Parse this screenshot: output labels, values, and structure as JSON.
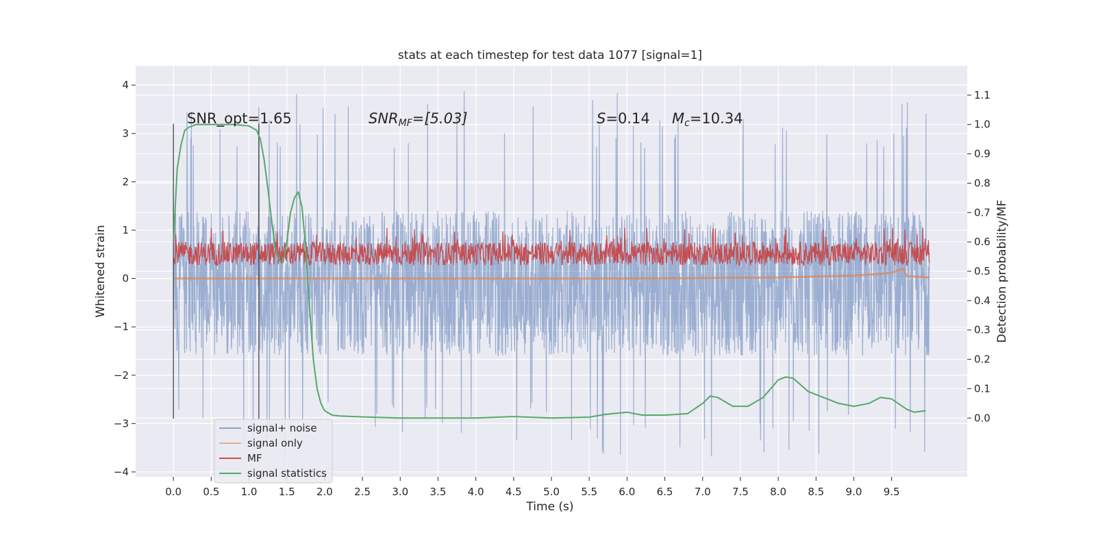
{
  "chart_data": {
    "type": "line",
    "title": "stats at each timestep for test data 1077 [signal=1]",
    "xlabel": "Time (s)",
    "ylabel_left": "Whitened strain",
    "ylabel_right": "Detection probability/MF",
    "xlim": [
      -0.5,
      10.5
    ],
    "ylim_left": [
      -4.1,
      4.4
    ],
    "ylim_right": [
      -0.2,
      1.2
    ],
    "x_ticks": [
      "0.0",
      "0.5",
      "1.0",
      "1.5",
      "2.0",
      "2.5",
      "3.0",
      "3.5",
      "4.0",
      "4.5",
      "5.0",
      "5.5",
      "6.0",
      "6.5",
      "7.0",
      "7.5",
      "8.0",
      "8.5",
      "9.0",
      "9.5"
    ],
    "y_ticks_left": [
      "4",
      "3",
      "2",
      "1",
      "0",
      "−1",
      "−2",
      "−3",
      "−4"
    ],
    "y_ticks_right": [
      "1.1",
      "1.0",
      "0.9",
      "0.8",
      "0.7",
      "0.6",
      "0.5",
      "0.4",
      "0.3",
      "0.2",
      "0.1",
      "0.0"
    ],
    "grid": true,
    "legend_position": "lower-left",
    "annotations": {
      "snr_opt": "SNR_opt=1.65",
      "snr_mf_base": "SNR",
      "snr_mf_sub": "MF",
      "snr_mf_value": "=[5.03]",
      "s_sym": "S",
      "s_value": "=0.14",
      "mc_sym": "M",
      "mc_sub": "c",
      "mc_value": "=10.34"
    },
    "vertical_lines": [
      0.0,
      1.13
    ],
    "series": [
      {
        "name": "signal+ noise",
        "color": "#4c72b0",
        "axis": "left",
        "x_range": [
          0.0,
          10.0
        ],
        "envelope_typical": [
          -1.6,
          1.4
        ],
        "envelope_extreme": [
          -3.7,
          4.0
        ]
      },
      {
        "name": "signal only",
        "color": "#dd8452",
        "axis": "left",
        "x": [
          0.0,
          1.0,
          2.0,
          3.0,
          4.0,
          5.0,
          6.0,
          7.0,
          8.0,
          8.5,
          9.0,
          9.3,
          9.5,
          9.65,
          9.7,
          10.0
        ],
        "y": [
          0.0,
          0.0,
          0.0,
          0.0,
          0.0,
          0.0,
          0.0,
          0.01,
          0.02,
          0.04,
          0.06,
          0.09,
          0.12,
          0.2,
          0.05,
          0.02
        ]
      },
      {
        "name": "MF",
        "color": "#c44e52",
        "axis": "right",
        "x_range": [
          0.0,
          10.0
        ],
        "band": [
          0.52,
          0.6
        ],
        "peak_max": 0.65
      },
      {
        "name": "signal statistics",
        "color": "#55a868",
        "axis": "right",
        "x": [
          0.0,
          0.05,
          0.1,
          0.15,
          0.2,
          0.3,
          0.5,
          0.8,
          1.0,
          1.1,
          1.15,
          1.2,
          1.25,
          1.3,
          1.35,
          1.4,
          1.45,
          1.5,
          1.55,
          1.6,
          1.65,
          1.7,
          1.75,
          1.8,
          1.85,
          1.9,
          1.95,
          2.0,
          2.1,
          2.2,
          2.5,
          3.0,
          3.5,
          4.0,
          4.5,
          4.7,
          5.0,
          5.5,
          5.7,
          6.0,
          6.2,
          6.5,
          6.8,
          7.0,
          7.1,
          7.2,
          7.4,
          7.6,
          7.8,
          8.0,
          8.1,
          8.2,
          8.4,
          8.6,
          8.8,
          9.0,
          9.2,
          9.35,
          9.5,
          9.7,
          9.8,
          9.95
        ],
        "y": [
          0.6,
          0.85,
          0.93,
          0.98,
          0.99,
          1.0,
          1.0,
          1.0,
          0.995,
          0.98,
          0.95,
          0.88,
          0.78,
          0.67,
          0.57,
          0.535,
          0.53,
          0.6,
          0.7,
          0.75,
          0.77,
          0.72,
          0.58,
          0.38,
          0.2,
          0.1,
          0.05,
          0.025,
          0.01,
          0.007,
          0.004,
          0.0,
          0.0,
          0.0,
          0.005,
          0.003,
          0.0,
          0.003,
          0.012,
          0.02,
          0.01,
          0.01,
          0.015,
          0.05,
          0.075,
          0.07,
          0.04,
          0.04,
          0.07,
          0.13,
          0.14,
          0.135,
          0.09,
          0.07,
          0.05,
          0.04,
          0.05,
          0.07,
          0.065,
          0.03,
          0.02,
          0.025
        ]
      }
    ]
  }
}
